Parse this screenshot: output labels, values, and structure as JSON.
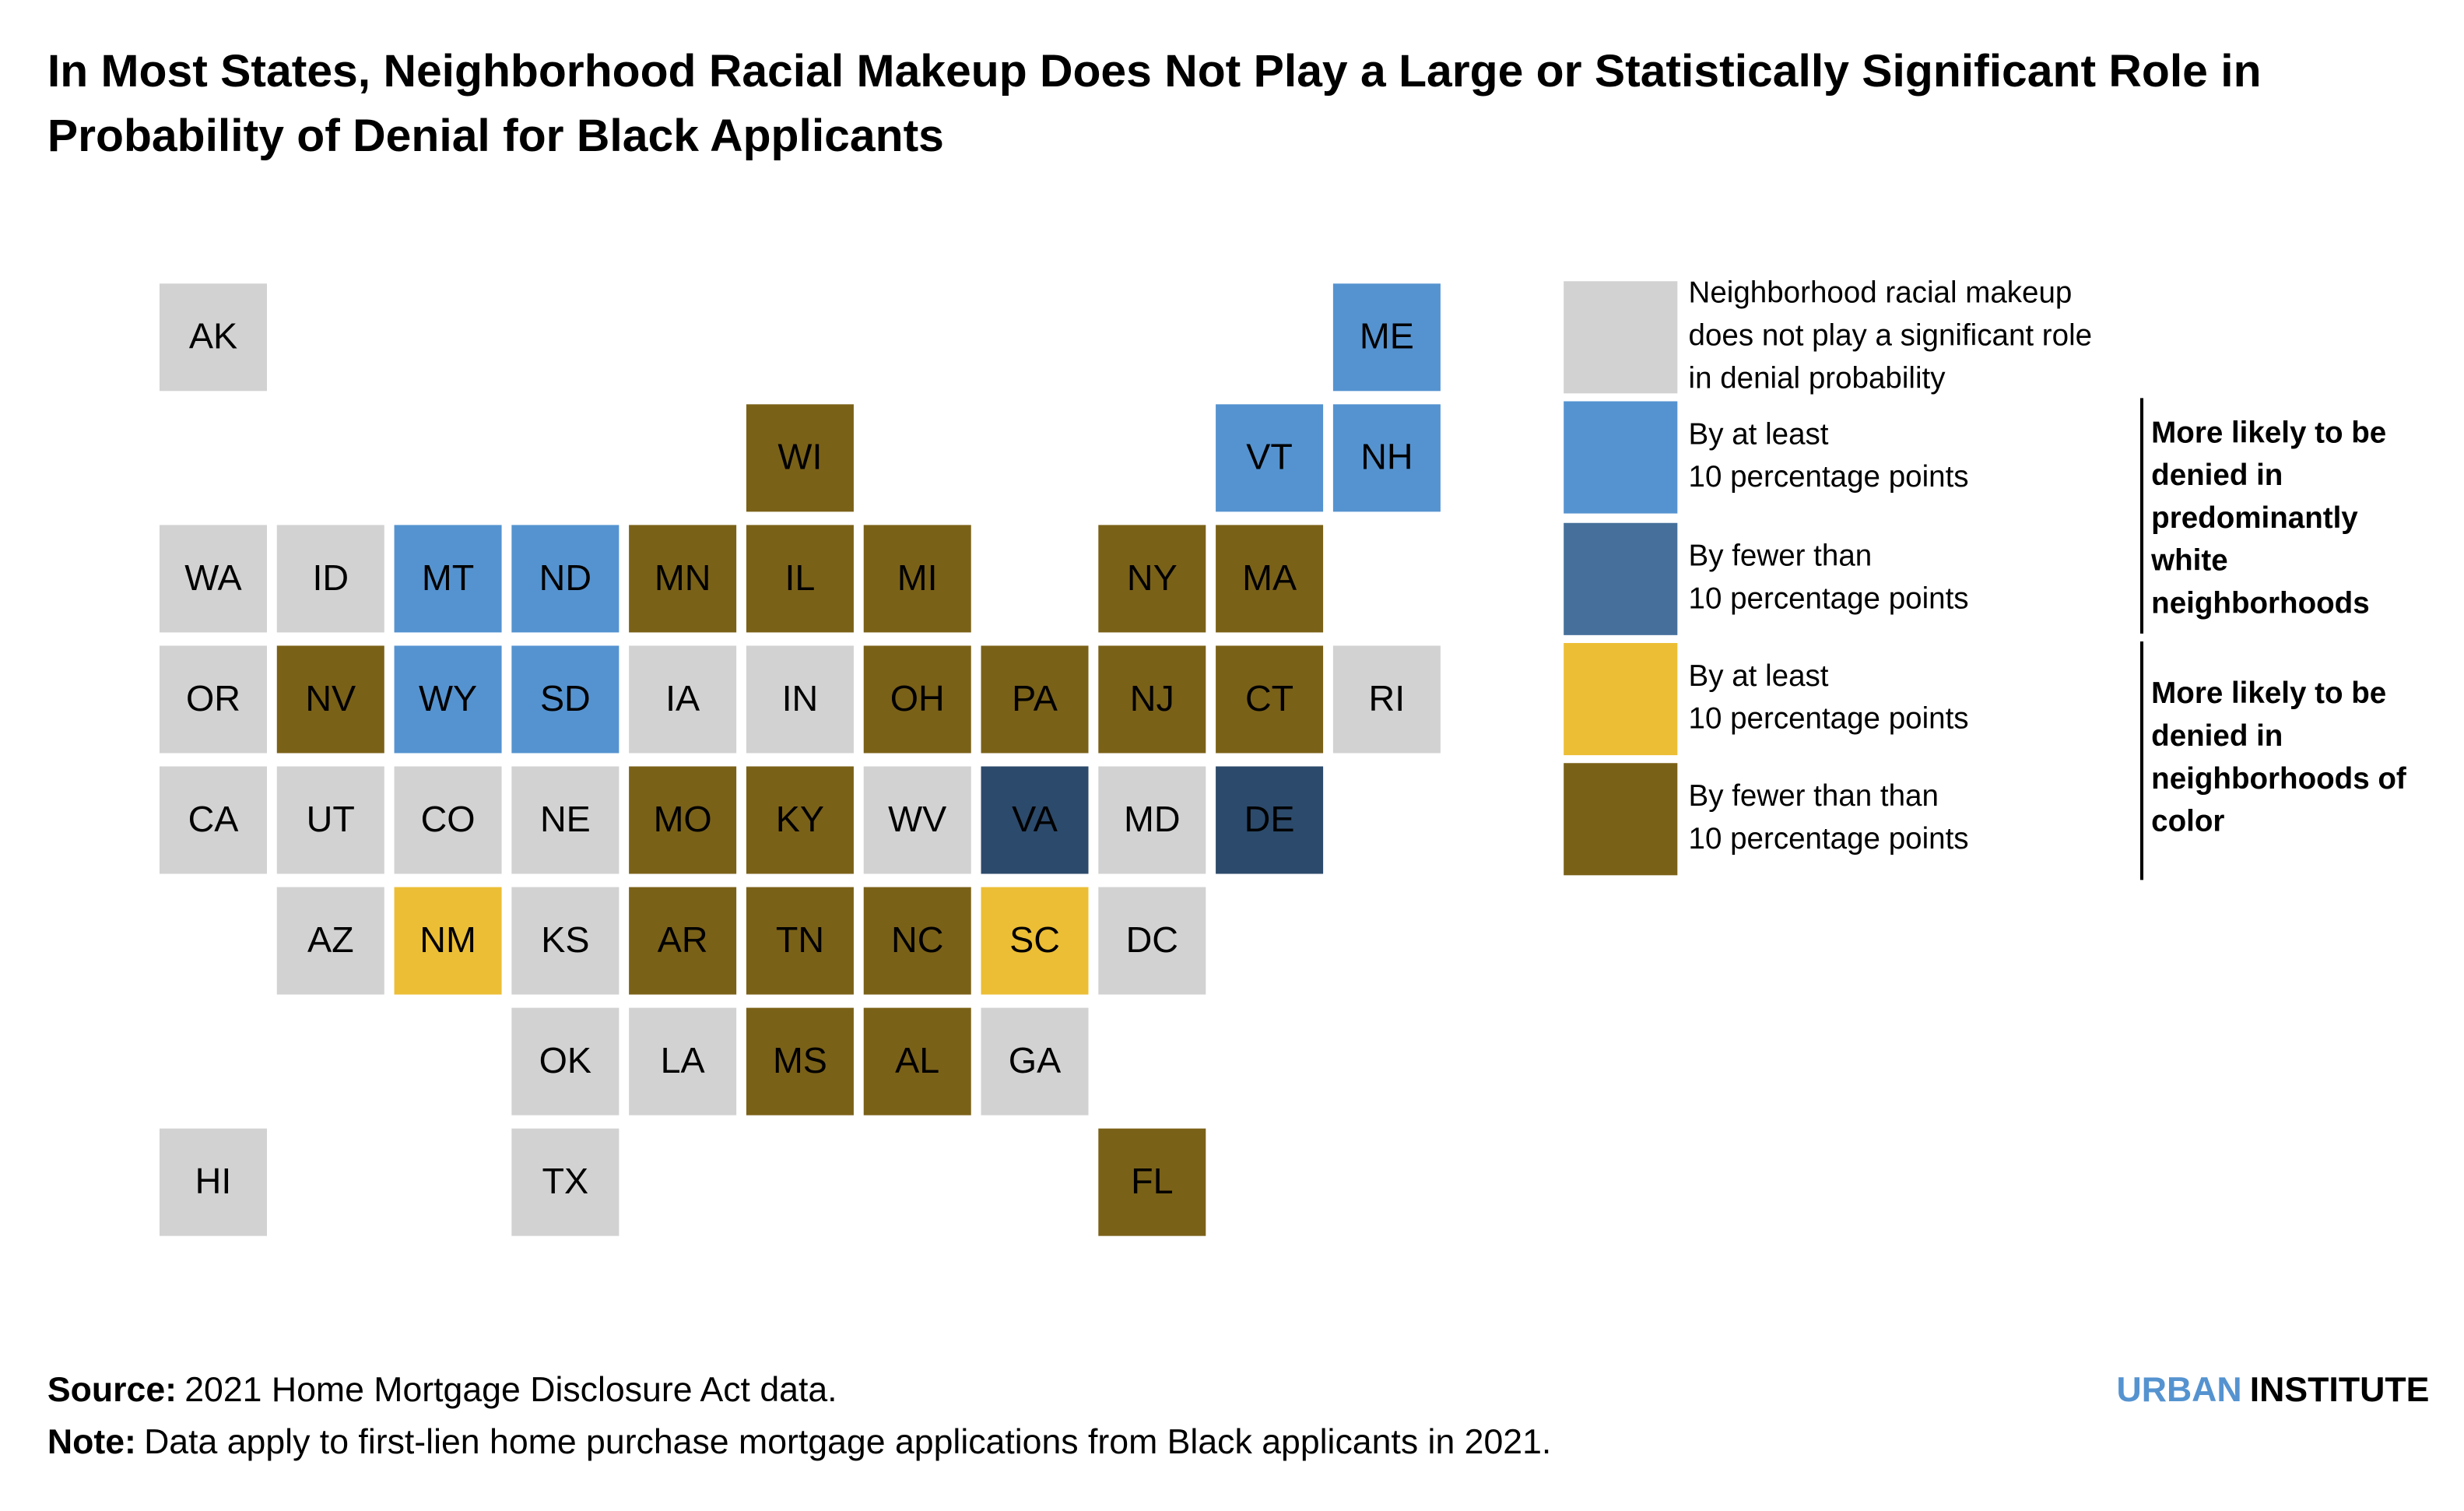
{
  "title_lines": [
    "In Most States, Neighborhood Racial Makeup Does Not Play a Large or Statistically Significant Role in",
    "Probability of Denial for Black Applicants"
  ],
  "map": {
    "rows": [
      [
        {
          "state": "AK",
          "color": "#d2d2d2"
        },
        null,
        null,
        null,
        null,
        null,
        null,
        null,
        null,
        null,
        {
          "state": "ME",
          "color": "#5593d0"
        }
      ],
      [
        null,
        null,
        null,
        null,
        null,
        {
          "state": "WI",
          "color": "#7a6118"
        },
        null,
        null,
        null,
        {
          "state": "VT",
          "color": "#5593d0"
        },
        {
          "state": "NH",
          "color": "#5593d0"
        }
      ],
      [
        {
          "state": "WA",
          "color": "#d2d2d2"
        },
        {
          "state": "ID",
          "color": "#d2d2d2"
        },
        {
          "state": "MT",
          "color": "#5593d0"
        },
        {
          "state": "ND",
          "color": "#5593d0"
        },
        {
          "state": "MN",
          "color": "#7a6118"
        },
        {
          "state": "IL",
          "color": "#7a6118"
        },
        {
          "state": "MI",
          "color": "#7a6118"
        },
        null,
        {
          "state": "NY",
          "color": "#7a6118"
        },
        {
          "state": "MA",
          "color": "#7a6118"
        },
        null
      ],
      [
        {
          "state": "OR",
          "color": "#d2d2d2"
        },
        {
          "state": "NV",
          "color": "#7a6118"
        },
        {
          "state": "WY",
          "color": "#5593d0"
        },
        {
          "state": "SD",
          "color": "#5593d0"
        },
        {
          "state": "IA",
          "color": "#d2d2d2"
        },
        {
          "state": "IN",
          "color": "#d2d2d2"
        },
        {
          "state": "OH",
          "color": "#7a6118"
        },
        {
          "state": "PA",
          "color": "#7a6118"
        },
        {
          "state": "NJ",
          "color": "#7a6118"
        },
        {
          "state": "CT",
          "color": "#7a6118"
        },
        {
          "state": "RI",
          "color": "#d2d2d2"
        }
      ],
      [
        {
          "state": "CA",
          "color": "#d2d2d2"
        },
        {
          "state": "UT",
          "color": "#d2d2d2"
        },
        {
          "state": "CO",
          "color": "#d2d2d2"
        },
        {
          "state": "NE",
          "color": "#d2d2d2"
        },
        {
          "state": "MO",
          "color": "#7a6118"
        },
        {
          "state": "KY",
          "color": "#7a6118"
        },
        {
          "state": "WV",
          "color": "#d2d2d2"
        },
        {
          "state": "VA",
          "color": "#2c4a6b"
        },
        {
          "state": "MD",
          "color": "#d2d2d2"
        },
        {
          "state": "DE",
          "color": "#2c4a6b"
        },
        null
      ],
      [
        null,
        {
          "state": "AZ",
          "color": "#d2d2d2"
        },
        {
          "state": "NM",
          "color": "#ecbe35"
        },
        {
          "state": "KS",
          "color": "#d2d2d2"
        },
        {
          "state": "AR",
          "color": "#7a6118"
        },
        {
          "state": "TN",
          "color": "#7a6118"
        },
        {
          "state": "NC",
          "color": "#7a6118"
        },
        {
          "state": "SC",
          "color": "#ecbe35"
        },
        {
          "state": "DC",
          "color": "#d2d2d2"
        },
        null,
        null
      ],
      [
        null,
        null,
        null,
        {
          "state": "OK",
          "color": "#d2d2d2"
        },
        {
          "state": "LA",
          "color": "#d2d2d2"
        },
        {
          "state": "MS",
          "color": "#7a6118"
        },
        {
          "state": "AL",
          "color": "#7a6118"
        },
        {
          "state": "GA",
          "color": "#d2d2d2"
        },
        null,
        null,
        null
      ],
      [
        {
          "state": "HI",
          "color": "#d2d2d2"
        },
        null,
        null,
        {
          "state": "TX",
          "color": "#d2d2d2"
        },
        null,
        null,
        null,
        null,
        {
          "state": "FL",
          "color": "#7a6118"
        },
        null,
        null
      ]
    ]
  },
  "legend": {
    "items": [
      {
        "color": "#d2d2d2",
        "lines": [
          "Neighborhood racial makeup",
          "does not play a significant role",
          "in denial probability"
        ]
      },
      {
        "color": "#5593d0",
        "lines": [
          "By at least",
          "10 percentage points"
        ]
      },
      {
        "color": "#46709b",
        "lines": [
          "By fewer than",
          "10 percentage points"
        ]
      },
      {
        "color": "#ecbe35",
        "lines": [
          "By at least",
          "10 percentage points"
        ]
      },
      {
        "color": "#7a6118",
        "lines": [
          "By fewer than than",
          "10 percentage points"
        ]
      }
    ],
    "groups": [
      {
        "lines": [
          "More likely to be",
          "denied in",
          "predominantly",
          "white",
          "neighborhoods"
        ]
      },
      {
        "lines": [
          "More likely to be",
          "denied in",
          "neighborhoods of",
          "color"
        ]
      }
    ]
  },
  "footer": {
    "source": {
      "label": "Source:",
      "text": "2021 Home Mortgage Disclosure Act data."
    },
    "note": {
      "label": "Note:",
      "text": "Data apply to first-lien home purchase mortgage applications from Black applicants in 2021."
    }
  },
  "logo": {
    "first": "URBAN",
    "second": "INSTITUTE"
  }
}
